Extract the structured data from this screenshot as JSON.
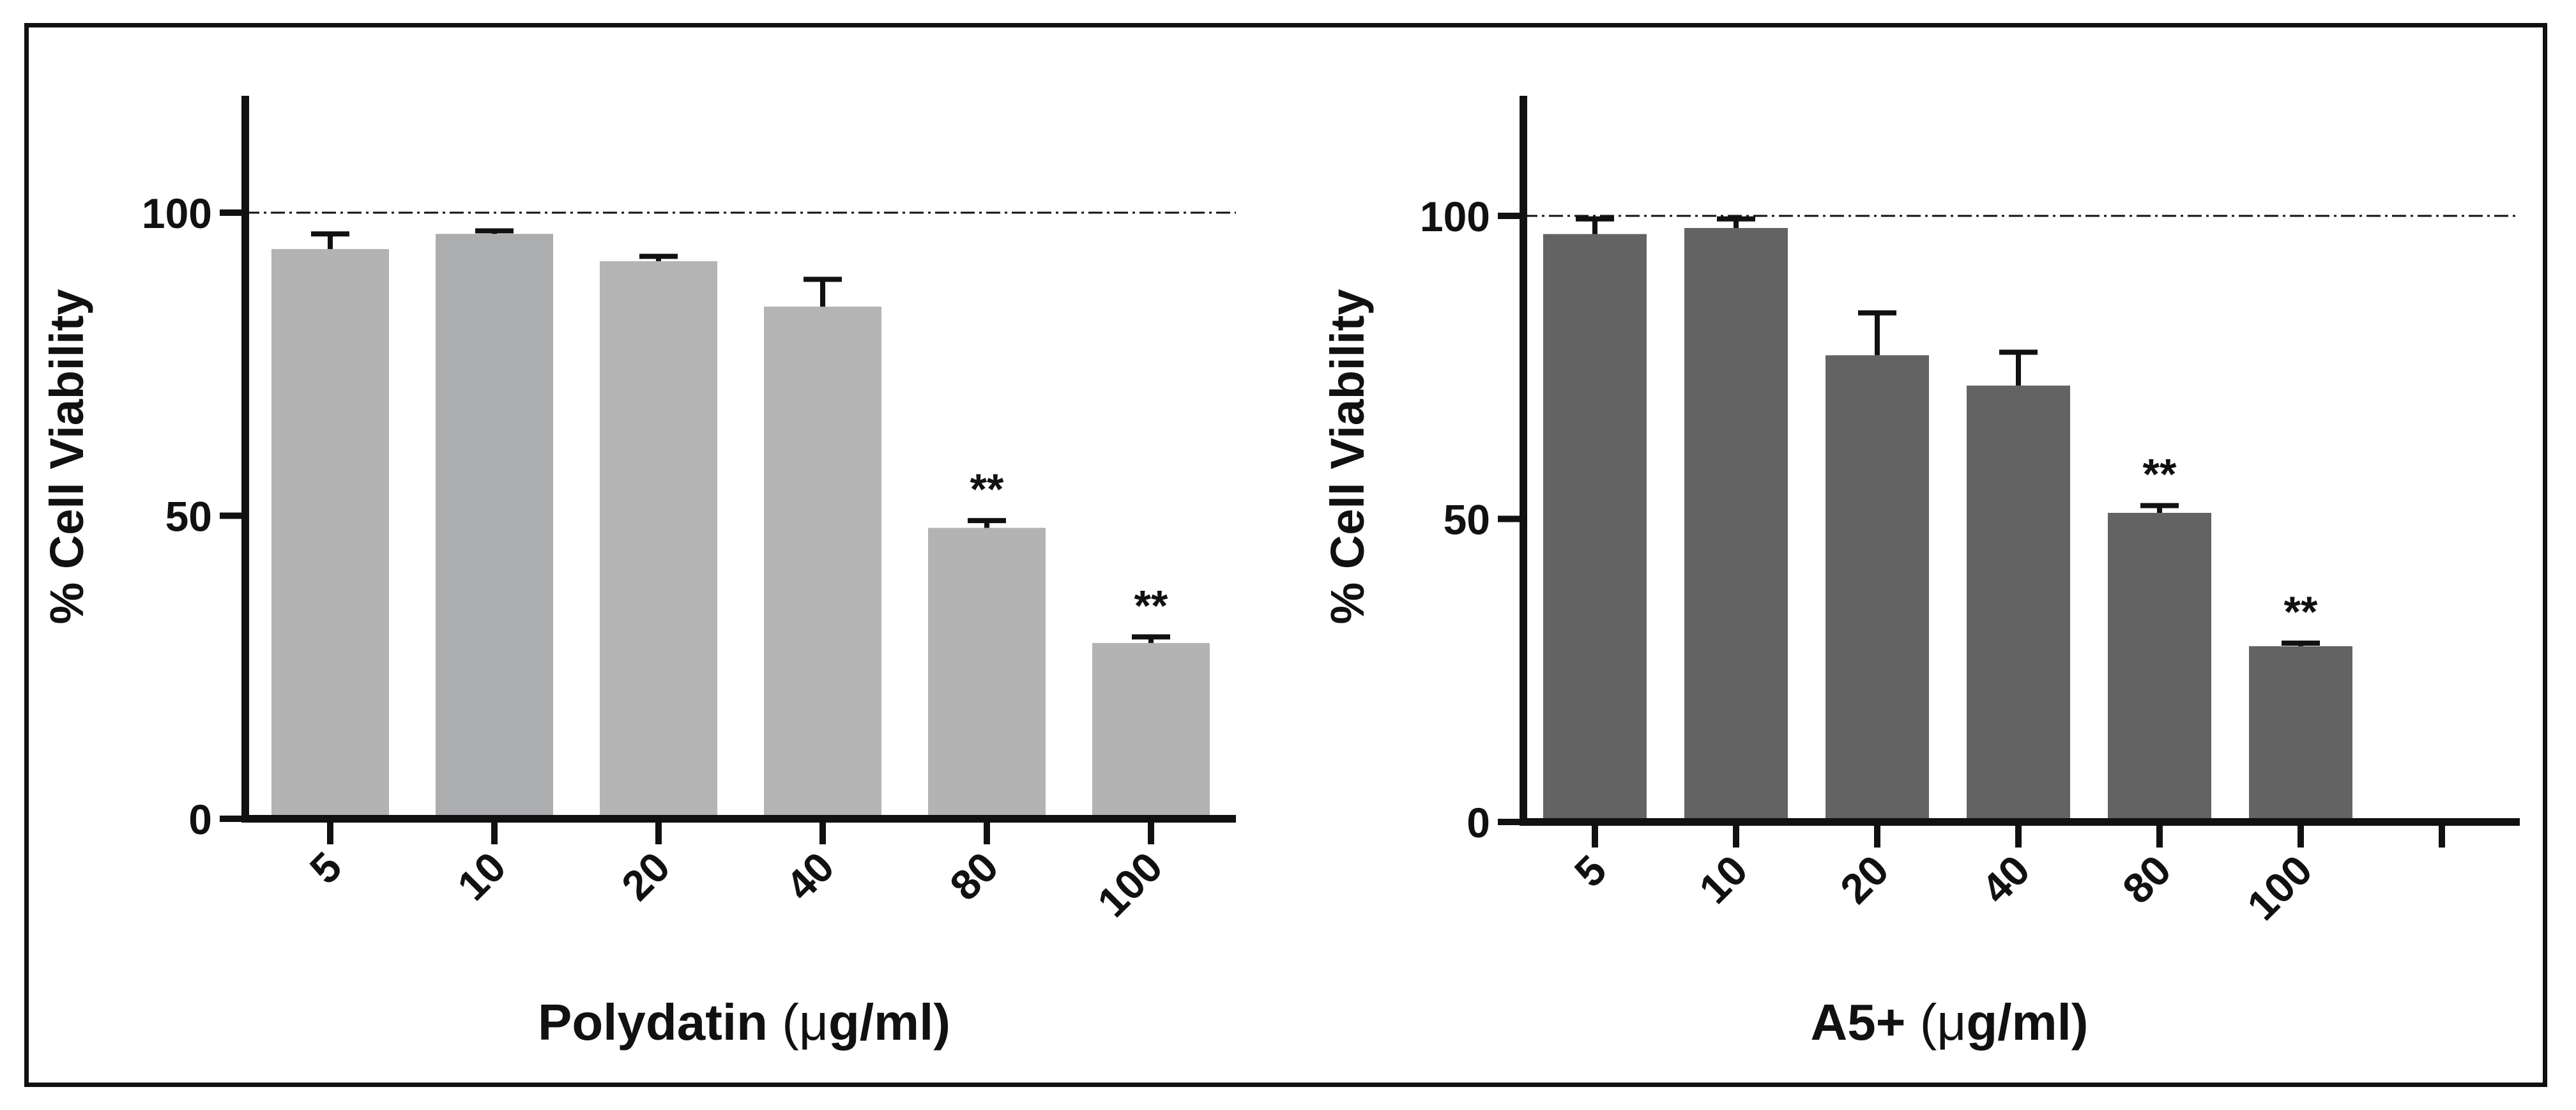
{
  "chart_data": [
    {
      "type": "bar",
      "title": "",
      "xlabel": "Polydatin (μg/ml)",
      "xlabel_parts": [
        "Polydatin ",
        "(μ",
        "g/ml)"
      ],
      "ylabel": "% Cell Viability",
      "ylim": [
        0,
        120
      ],
      "yticks": [
        0,
        50,
        100
      ],
      "reference_line": 100,
      "categories": [
        "5",
        "10",
        "20",
        "40",
        "80",
        "100"
      ],
      "values": [
        94,
        96.5,
        92,
        84.5,
        48,
        29
      ],
      "errors": [
        2.5,
        0.5,
        0.8,
        4.5,
        1.2,
        1.0
      ],
      "annotations": [
        "",
        "",
        "",
        "",
        "**",
        "**"
      ],
      "bar_colors": [
        "#b3b3b3",
        "#acadaf",
        "#b4b4b4",
        "#b4b4b4",
        "#b3b3b3",
        "#b3b3b3"
      ],
      "grid": false,
      "legend": "none"
    },
    {
      "type": "bar",
      "title": "",
      "xlabel": "A5+ (μg/ml)",
      "xlabel_parts": [
        "A5+ ",
        "(μ",
        "g/ml)"
      ],
      "ylabel": "% Cell Viability",
      "ylim": [
        0,
        120
      ],
      "yticks": [
        0,
        50,
        100
      ],
      "reference_line": 100,
      "categories": [
        "5",
        "10",
        "20",
        "40",
        "80",
        "100"
      ],
      "values": [
        97,
        98,
        77,
        72,
        51,
        29
      ],
      "errors": [
        2.5,
        1.5,
        7,
        5.5,
        1.2,
        0.5
      ],
      "annotations": [
        "",
        "",
        "",
        "",
        "**",
        "**"
      ],
      "bar_colors": [
        "#626362",
        "#626362",
        "#626362",
        "#626362",
        "#626362",
        "#626362"
      ],
      "grid": false,
      "legend": "none"
    }
  ]
}
